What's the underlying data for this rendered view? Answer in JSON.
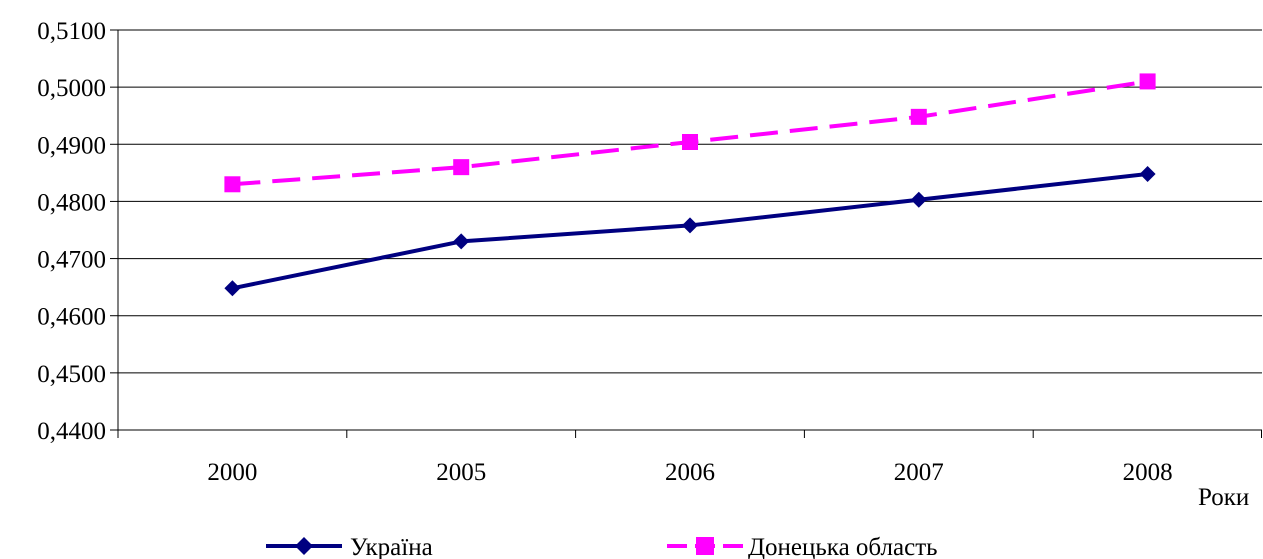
{
  "chart_data": {
    "type": "line",
    "categories": [
      "2000",
      "2005",
      "2006",
      "2007",
      "2008"
    ],
    "series": [
      {
        "name": "Україна",
        "values": [
          0.4648,
          0.473,
          0.4758,
          0.4803,
          0.4848
        ],
        "color": "#000080",
        "line_style": "solid",
        "marker": "diamond"
      },
      {
        "name": "Донецька область",
        "values": [
          0.483,
          0.486,
          0.4904,
          0.4948,
          0.501
        ],
        "color": "#FF00FF",
        "line_style": "dashed",
        "marker": "square"
      }
    ],
    "ylim": [
      0.44,
      0.51
    ],
    "yticks": [
      "0,4400",
      "0,4500",
      "0,4600",
      "0,4700",
      "0,4800",
      "0,4900",
      "0,5000",
      "0,5100"
    ],
    "xlabel": "Роки",
    "ylabel": "",
    "title": "",
    "grid": "horizontal",
    "legend": "bottom"
  }
}
